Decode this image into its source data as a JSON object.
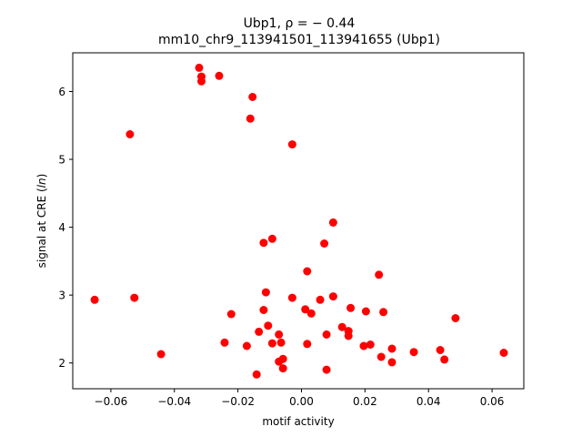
{
  "chart_data": {
    "type": "scatter",
    "title_line1": "Ubp1, ρ = − 0.44",
    "title_line2": "mm10_chr9_113941501_113941655 (Ubp1)",
    "xlabel": "motif activity",
    "ylabel_prefix": "signal at CRE (",
    "ylabel_italic": "ln",
    "ylabel_suffix": ")",
    "xlim": [
      -0.072,
      0.07
    ],
    "ylim": [
      1.62,
      6.57
    ],
    "xticks": [
      -0.06,
      -0.04,
      -0.02,
      0.0,
      0.02,
      0.04,
      0.06
    ],
    "xtick_labels": [
      "−0.06",
      "−0.04",
      "−0.02",
      "0.00",
      "0.02",
      "0.04",
      "0.06"
    ],
    "yticks": [
      2,
      3,
      4,
      5,
      6
    ],
    "ytick_labels": [
      "2",
      "3",
      "4",
      "5",
      "6"
    ],
    "grid": false,
    "marker_color": "#ff0000",
    "points": [
      {
        "x": -0.0651,
        "y": 2.93
      },
      {
        "x": -0.054,
        "y": 5.37
      },
      {
        "x": -0.0526,
        "y": 2.96
      },
      {
        "x": -0.0442,
        "y": 2.13
      },
      {
        "x": -0.0322,
        "y": 6.35
      },
      {
        "x": -0.0315,
        "y": 6.22
      },
      {
        "x": -0.0315,
        "y": 6.15
      },
      {
        "x": -0.0259,
        "y": 6.23
      },
      {
        "x": -0.0242,
        "y": 2.3
      },
      {
        "x": -0.0221,
        "y": 2.72
      },
      {
        "x": -0.0172,
        "y": 2.25
      },
      {
        "x": -0.0161,
        "y": 5.6
      },
      {
        "x": -0.0154,
        "y": 5.92
      },
      {
        "x": -0.0141,
        "y": 1.83
      },
      {
        "x": -0.0134,
        "y": 2.46
      },
      {
        "x": -0.0119,
        "y": 2.78
      },
      {
        "x": -0.0119,
        "y": 3.77
      },
      {
        "x": -0.0112,
        "y": 3.04
      },
      {
        "x": -0.0105,
        "y": 2.55
      },
      {
        "x": -0.0092,
        "y": 3.83
      },
      {
        "x": -0.0092,
        "y": 2.29
      },
      {
        "x": -0.0071,
        "y": 2.02
      },
      {
        "x": -0.0071,
        "y": 2.42
      },
      {
        "x": -0.0064,
        "y": 2.3
      },
      {
        "x": -0.0058,
        "y": 1.92
      },
      {
        "x": -0.0058,
        "y": 2.06
      },
      {
        "x": -0.0029,
        "y": 5.22
      },
      {
        "x": -0.0029,
        "y": 2.96
      },
      {
        "x": 0.0012,
        "y": 2.79
      },
      {
        "x": 0.0018,
        "y": 3.35
      },
      {
        "x": 0.0018,
        "y": 2.28
      },
      {
        "x": 0.0031,
        "y": 2.73
      },
      {
        "x": 0.0059,
        "y": 2.93
      },
      {
        "x": 0.0072,
        "y": 3.76
      },
      {
        "x": 0.0079,
        "y": 2.42
      },
      {
        "x": 0.0079,
        "y": 1.9
      },
      {
        "x": 0.01,
        "y": 4.07
      },
      {
        "x": 0.01,
        "y": 2.98
      },
      {
        "x": 0.0128,
        "y": 2.53
      },
      {
        "x": 0.0148,
        "y": 2.4
      },
      {
        "x": 0.0148,
        "y": 2.47
      },
      {
        "x": 0.0155,
        "y": 2.81
      },
      {
        "x": 0.0196,
        "y": 2.25
      },
      {
        "x": 0.0203,
        "y": 2.76
      },
      {
        "x": 0.0217,
        "y": 2.27
      },
      {
        "x": 0.0244,
        "y": 3.3
      },
      {
        "x": 0.0251,
        "y": 2.09
      },
      {
        "x": 0.0258,
        "y": 2.75
      },
      {
        "x": 0.0285,
        "y": 2.21
      },
      {
        "x": 0.0285,
        "y": 2.01
      },
      {
        "x": 0.0354,
        "y": 2.16
      },
      {
        "x": 0.0437,
        "y": 2.19
      },
      {
        "x": 0.045,
        "y": 2.05
      },
      {
        "x": 0.0485,
        "y": 2.66
      },
      {
        "x": 0.0637,
        "y": 2.15
      }
    ]
  }
}
